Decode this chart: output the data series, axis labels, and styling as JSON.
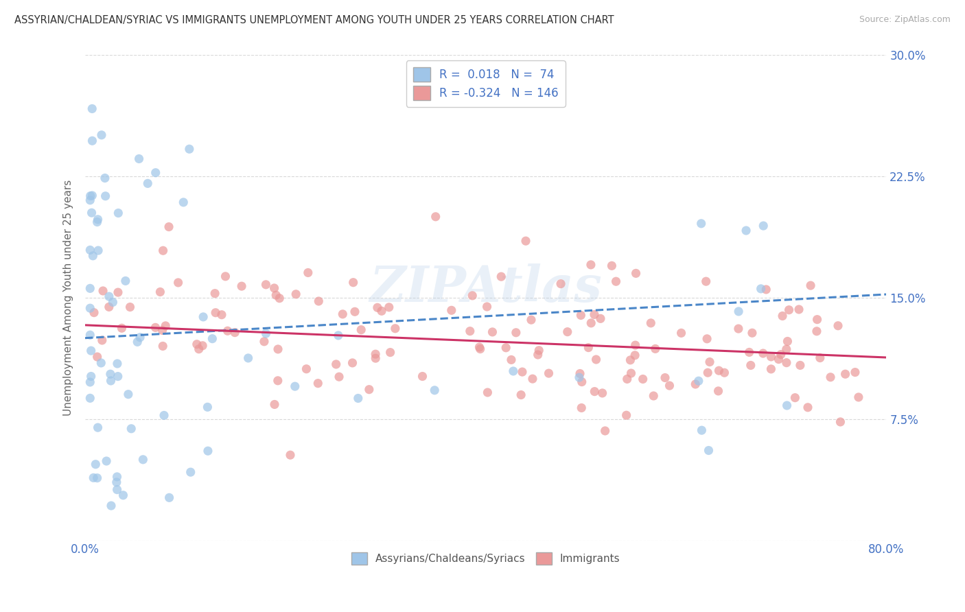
{
  "title": "ASSYRIAN/CHALDEAN/SYRIAC VS IMMIGRANTS UNEMPLOYMENT AMONG YOUTH UNDER 25 YEARS CORRELATION CHART",
  "source": "Source: ZipAtlas.com",
  "ylabel": "Unemployment Among Youth under 25 years",
  "xlim": [
    0.0,
    0.8
  ],
  "ylim": [
    0.0,
    0.3
  ],
  "background_color": "#ffffff",
  "grid_color": "#d0d0d0",
  "scatter_color_blue": "#9fc5e8",
  "scatter_color_pink": "#ea9999",
  "line_color_blue": "#4a86c8",
  "line_color_pink": "#cc3366",
  "legend_R_blue": "0.018",
  "legend_N_blue": "74",
  "legend_R_pink": "-0.324",
  "legend_N_pink": "146",
  "label_blue": "Assyrians/Chaldeans/Syriacs",
  "label_pink": "Immigrants",
  "watermark": "ZIPAtlas",
  "title_color": "#333333",
  "source_color": "#aaaaaa",
  "tick_color": "#4472c4",
  "ylabel_color": "#666666"
}
